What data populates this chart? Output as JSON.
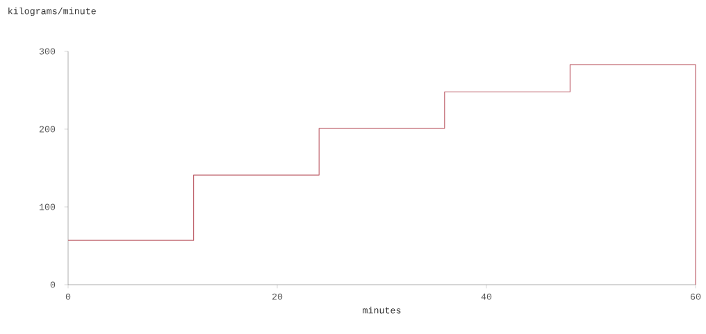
{
  "chart_data": {
    "type": "histogram",
    "xlabel": "minutes",
    "ylabel": "kilograms/minute",
    "bins": [
      0,
      12,
      24,
      36,
      48,
      60
    ],
    "values": [
      57,
      141,
      201,
      248,
      283
    ],
    "color": "#c0646e",
    "xlim": [
      0,
      60
    ],
    "ylim": [
      0,
      300
    ],
    "xticks": [
      0,
      20,
      40,
      60
    ],
    "yticks": [
      0,
      100,
      200,
      300
    ],
    "grid": false
  }
}
